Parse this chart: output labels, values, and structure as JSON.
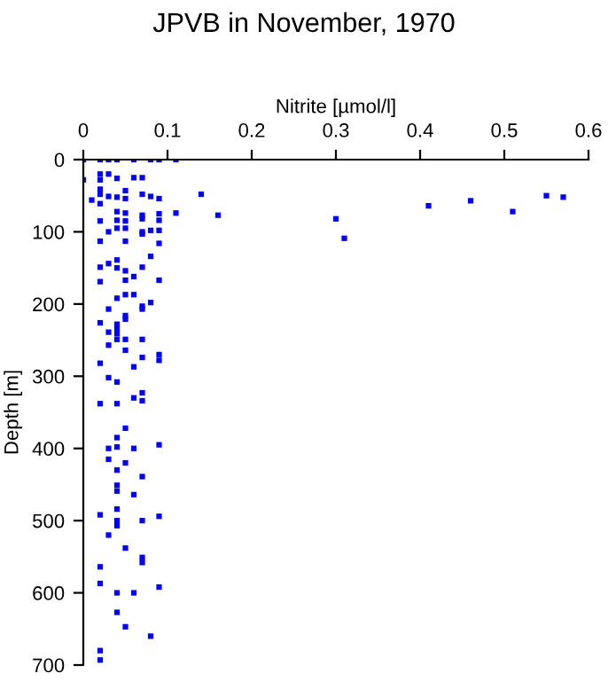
{
  "chart_data": {
    "type": "scatter",
    "title": "JPVB in November, 1970",
    "xlabel": "Nitrite [µmol/l]",
    "ylabel": "Depth [m]",
    "x": [
      0,
      0.02,
      0.03,
      0.04,
      0.06,
      0.08,
      0.09,
      0.11,
      0,
      0.02,
      0.03,
      0.02,
      0.04,
      0.06,
      0.07,
      0.02,
      0.02,
      0.03,
      0.04,
      0.05,
      0.05,
      0.01,
      0.02,
      0.07,
      0.08,
      0.09,
      0.14,
      0.11,
      0.16,
      0.04,
      0.04,
      0.05,
      0.05,
      0.02,
      0.07,
      0.07,
      0.09,
      0.09,
      0.04,
      0.03,
      0.05,
      0.07,
      0.07,
      0.08,
      0.09,
      0.02,
      0.05,
      0.09,
      0.08,
      0.03,
      0.04,
      0.04,
      0.02,
      0.05,
      0.07,
      0.06,
      0.05,
      0.02,
      0.09,
      0.04,
      0.05,
      0.06,
      0.08,
      0.07,
      0.07,
      0.03,
      0.05,
      0.05,
      0.02,
      0.04,
      0.04,
      0.04,
      0.03,
      0.04,
      0.05,
      0.07,
      0.03,
      0.05,
      0.07,
      0.09,
      0.09,
      0.06,
      0.02,
      0.03,
      0.04,
      0.07,
      0.06,
      0.07,
      0.02,
      0.04,
      0.05,
      0.04,
      0.03,
      0.04,
      0.06,
      0.09,
      0.03,
      0.05,
      0.04,
      0.07,
      0.04,
      0.04,
      0.06,
      0.02,
      0.04,
      0.07,
      0.09,
      0.04,
      0.04,
      0.03,
      0.05,
      0.07,
      0.07,
      0.02,
      0.02,
      0.09,
      0.04,
      0.06,
      0.04,
      0.05,
      0.08,
      0.02,
      0.02,
      0.3,
      0.31,
      0.41,
      0.46,
      0.51,
      0.55,
      0.57
    ],
    "values": [
      0,
      0,
      0,
      0,
      0,
      0,
      0,
      0,
      28,
      20,
      20,
      28,
      26,
      25,
      25,
      41,
      48,
      51,
      52,
      43,
      54,
      56,
      61,
      48,
      51,
      54,
      48,
      74,
      77,
      72,
      84,
      74,
      85,
      85,
      77,
      82,
      75,
      84,
      95,
      100,
      95,
      103,
      100,
      98,
      98,
      113,
      113,
      116,
      134,
      144,
      139,
      150,
      149,
      154,
      149,
      162,
      167,
      169,
      167,
      192,
      187,
      187,
      198,
      203,
      207,
      207,
      216,
      221,
      226,
      228,
      234,
      241,
      239,
      249,
      249,
      249,
      257,
      264,
      274,
      270,
      278,
      287,
      282,
      302,
      308,
      323,
      330,
      334,
      338,
      338,
      372,
      385,
      400,
      398,
      400,
      395,
      415,
      420,
      430,
      439,
      451,
      459,
      464,
      492,
      484,
      500,
      494,
      500,
      507,
      520,
      538,
      551,
      558,
      564,
      587,
      592,
      600,
      600,
      627,
      647,
      660,
      680,
      693,
      82,
      109,
      64,
      57,
      72,
      50,
      52
    ],
    "color": "#0000ff",
    "marker": "square",
    "xlim": [
      0,
      0.6
    ],
    "xticks": [
      0,
      0.1,
      0.2,
      0.3,
      0.4,
      0.5,
      0.6
    ],
    "ylim": [
      700,
      0
    ],
    "yticks": [
      0,
      100,
      200,
      300,
      400,
      500,
      600,
      700
    ],
    "grid": false,
    "legend": false
  }
}
